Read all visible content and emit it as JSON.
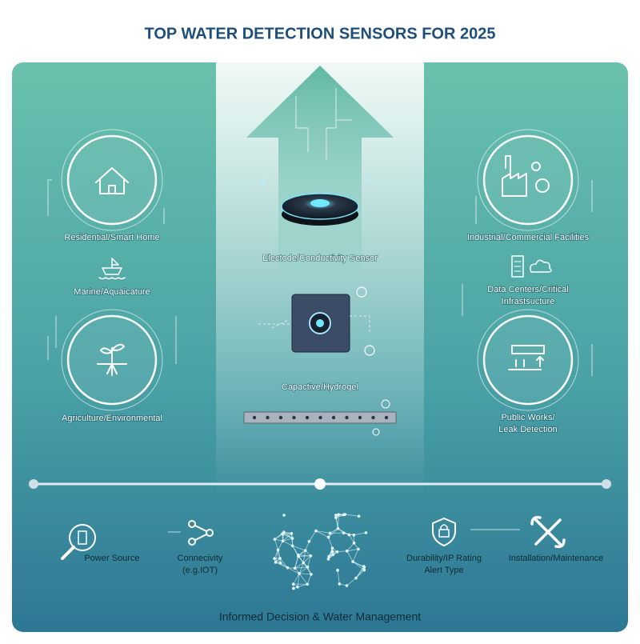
{
  "title": "TOP WATER DETECTION SENSORS FOR 2025",
  "left_sectors": [
    {
      "lines": [
        "Residential/Smart Home"
      ]
    },
    {
      "lines": [
        "Marine/Aquaicature"
      ]
    },
    {
      "lines": [
        "Agriculture/Environmental"
      ]
    }
  ],
  "center_sensors": [
    {
      "lines": [
        "Electode/Conductivity Sensor"
      ]
    },
    {
      "lines": [
        "Capactive/Hydrogel"
      ]
    }
  ],
  "right_sectors": [
    {
      "lines": [
        "Industrial/Commercial Facilities"
      ]
    },
    {
      "lines": [
        "Data Centers/Critical",
        "Infrastsucture"
      ]
    },
    {
      "lines": [
        "Public Works/",
        "Leak Detection"
      ]
    }
  ],
  "factors": [
    {
      "lines": [
        "Power Source"
      ]
    },
    {
      "lines": [
        "Connecivity",
        "(e.g.IOT)"
      ]
    },
    {
      "lines": [
        "Durability/IP Rating",
        "Alert Type"
      ]
    },
    {
      "lines": [
        "Installation/Maintenance"
      ]
    }
  ],
  "footer": "Informed Decision & Water Management"
}
